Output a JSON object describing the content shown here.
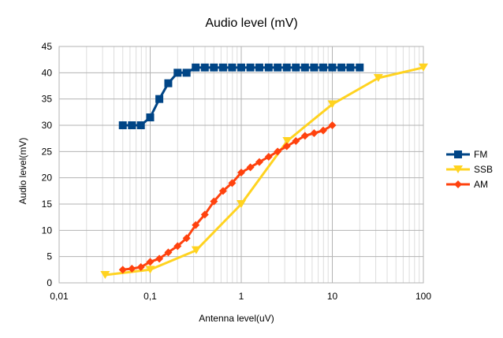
{
  "chart_data": {
    "type": "line",
    "title": "Audio level (mV)",
    "xlabel": "Antenna level(uV)",
    "ylabel": "Audio level(mV)",
    "x_scale": "log",
    "xlim": [
      0.01,
      100
    ],
    "ylim": [
      0,
      45
    ],
    "x_ticks": [
      "0,01",
      "0,1",
      "1",
      "10",
      "100"
    ],
    "y_ticks": [
      "0",
      "5",
      "10",
      "15",
      "20",
      "25",
      "30",
      "35",
      "40",
      "45"
    ],
    "grid": true,
    "legend_position": "right",
    "series": [
      {
        "name": "FM",
        "color": "#004586",
        "marker": "square",
        "x": [
          0.05,
          0.063,
          0.079,
          0.1,
          0.126,
          0.158,
          0.2,
          0.251,
          0.316,
          0.398,
          0.501,
          0.631,
          0.794,
          1,
          1.26,
          1.58,
          2,
          2.51,
          3.16,
          3.98,
          5.01,
          6.31,
          7.94,
          10,
          12.6,
          15.8,
          20
        ],
        "y": [
          30,
          30,
          30,
          31.5,
          35,
          38,
          40,
          40,
          41,
          41,
          41,
          41,
          41,
          41,
          41,
          41,
          41,
          41,
          41,
          41,
          41,
          41,
          41,
          41,
          41,
          41,
          41
        ]
      },
      {
        "name": "SSB",
        "color": "#ffd320",
        "marker": "triangle-down",
        "x": [
          0.032,
          0.1,
          0.32,
          1,
          3.2,
          10,
          32,
          100
        ],
        "y": [
          1.5,
          2.5,
          6.2,
          15,
          27,
          34,
          39,
          41
        ]
      },
      {
        "name": "AM",
        "color": "#ff420e",
        "marker": "diamond",
        "x": [
          0.05,
          0.063,
          0.079,
          0.1,
          0.126,
          0.158,
          0.2,
          0.251,
          0.316,
          0.398,
          0.501,
          0.631,
          0.794,
          1,
          1.26,
          1.58,
          2,
          2.51,
          3.16,
          3.98,
          5.01,
          6.31,
          7.94,
          10
        ],
        "y": [
          2.5,
          2.7,
          3,
          4,
          4.6,
          5.8,
          7,
          8.5,
          11,
          13,
          15.5,
          17.5,
          19,
          21,
          22,
          23,
          24,
          25,
          26,
          27,
          28,
          28.5,
          29,
          30
        ]
      }
    ]
  }
}
